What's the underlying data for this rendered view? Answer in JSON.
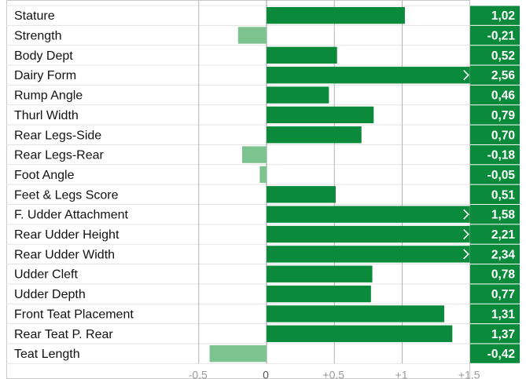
{
  "chart_data": {
    "type": "bar",
    "orientation": "horizontal",
    "categories": [
      "Stature",
      "Strength",
      "Body Dept",
      "Dairy Form",
      "Rump Angle",
      "Thurl Width",
      "Rear Legs-Side",
      "Rear Legs-Rear",
      "Foot Angle",
      "Feet & Legs Score",
      "F. Udder Attachment",
      "Rear Udder Height",
      "Rear Udder Width",
      "Udder Cleft",
      "Udder Depth",
      "Front Teat Placement",
      "Rear Teat P. Rear",
      "Teat Length"
    ],
    "values": [
      1.02,
      -0.21,
      0.52,
      2.56,
      0.46,
      0.79,
      0.7,
      -0.18,
      -0.05,
      0.51,
      1.58,
      2.21,
      2.34,
      0.78,
      0.77,
      1.31,
      1.37,
      -0.42
    ],
    "value_labels": [
      "1,02",
      "-0,21",
      "0,52",
      "2,56",
      "0,46",
      "0,79",
      "0,70",
      "-0,18",
      "-0,05",
      "0,51",
      "1,58",
      "2,21",
      "2,34",
      "0,78",
      "0,77",
      "1,31",
      "1,37",
      "-0,42"
    ],
    "xlim": [
      -0.5,
      1.5
    ],
    "ticks": [
      {
        "value": -0.5,
        "label": "-0,5"
      },
      {
        "value": 0,
        "label": "0"
      },
      {
        "value": 0.5,
        "label": "+0,5"
      },
      {
        "value": 1,
        "label": "+1"
      },
      {
        "value": 1.5,
        "label": "+1,5"
      }
    ],
    "overflow_marker": ">",
    "grid": true,
    "colors": {
      "positive": "#0b8a3c",
      "negative": "#7cc38f",
      "value_badge": "#0b8a3c",
      "overflow_marker": "#ffffff"
    }
  }
}
